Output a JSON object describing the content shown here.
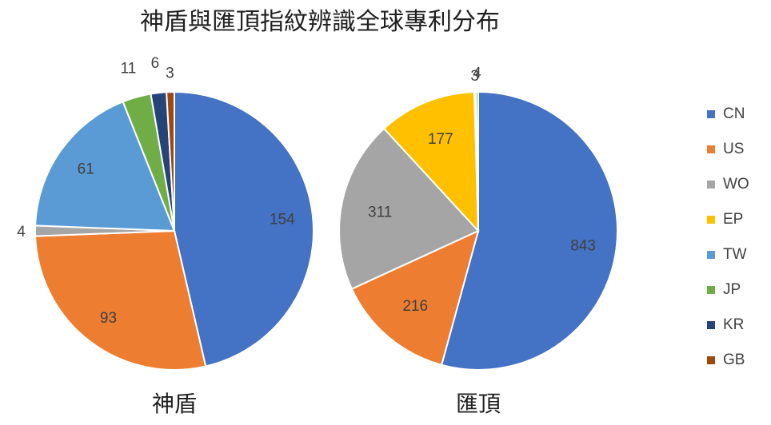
{
  "chart_data": {
    "type": "pie",
    "title": "神盾與匯頂指紋辨識全球專利分布",
    "legend": {
      "placement": "right",
      "items": [
        {
          "label": "CN",
          "color": "#4472C4"
        },
        {
          "label": "US",
          "color": "#ED7D31"
        },
        {
          "label": "WO",
          "color": "#A5A5A5"
        },
        {
          "label": "EP",
          "color": "#FFC000"
        },
        {
          "label": "TW",
          "color": "#5B9BD5"
        },
        {
          "label": "JP",
          "color": "#70AD47"
        },
        {
          "label": "KR",
          "color": "#264478"
        },
        {
          "label": "GB",
          "color": "#9E480E"
        }
      ]
    },
    "pies": [
      {
        "name": "神盾",
        "slices": [
          {
            "label": "CN",
            "value": 154
          },
          {
            "label": "US",
            "value": 93
          },
          {
            "label": "WO",
            "value": 4
          },
          {
            "label": "TW",
            "value": 61
          },
          {
            "label": "JP",
            "value": 11
          },
          {
            "label": "KR",
            "value": 6
          },
          {
            "label": "GB",
            "value": 3
          }
        ]
      },
      {
        "name": "匯頂",
        "slices": [
          {
            "label": "CN",
            "value": 843
          },
          {
            "label": "US",
            "value": 216
          },
          {
            "label": "WO",
            "value": 311
          },
          {
            "label": "EP",
            "value": 177
          },
          {
            "label": "TW",
            "value": 3
          },
          {
            "label": "JP",
            "value": 4
          }
        ]
      }
    ]
  }
}
